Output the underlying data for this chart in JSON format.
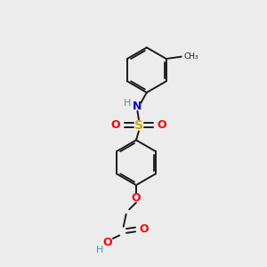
{
  "bg_color": "#ececec",
  "bond_color": "#1a1a1a",
  "bond_width": 1.4,
  "colors": {
    "N": "#0000cc",
    "O": "#ff0000",
    "S": "#ccaa00",
    "H": "#4d9999",
    "C": "#1a1a1a"
  },
  "ring_r": 0.85,
  "figsize": [
    3.0,
    3.0
  ],
  "dpi": 100
}
